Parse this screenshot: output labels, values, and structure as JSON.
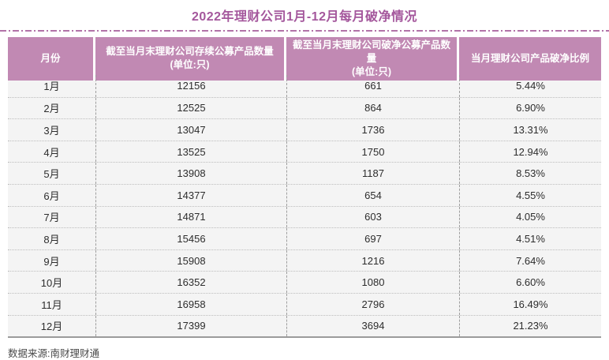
{
  "title": "2022年理财公司1月-12月每月破净情况",
  "source": "数据来源:南财理财通",
  "colors": {
    "title_text": "#a4579c",
    "header_bg": "#c189b3",
    "header_text": "#ffffff",
    "row_bg": "#f4f4f4",
    "body_text": "#2d2d2d",
    "divider_dash": "#b273a8",
    "bottom_rule": "#9b9b9b"
  },
  "table": {
    "headers": [
      {
        "label": "月份",
        "sub": ""
      },
      {
        "label": "截至当月末理财公司存续公募产品数量",
        "sub": "(单位:只)"
      },
      {
        "label": "截至当月末理财公司破净公募产品数量",
        "sub": "(单位:只)"
      },
      {
        "label": "当月理财公司产品破净比例",
        "sub": ""
      }
    ]
  },
  "chart_data": {
    "type": "table",
    "title": "2022年理财公司1月-12月每月破净情况",
    "columns": [
      "月份",
      "截至当月末理财公司存续公募产品数量(单位:只)",
      "截至当月末理财公司破净公募产品数量(单位:只)",
      "当月理财公司产品破净比例"
    ],
    "rows": [
      [
        "1月",
        12156,
        661,
        "5.44%"
      ],
      [
        "2月",
        12525,
        864,
        "6.90%"
      ],
      [
        "3月",
        13047,
        1736,
        "13.31%"
      ],
      [
        "4月",
        13525,
        1750,
        "12.94%"
      ],
      [
        "5月",
        13908,
        1187,
        "8.53%"
      ],
      [
        "6月",
        14377,
        654,
        "4.55%"
      ],
      [
        "7月",
        14871,
        603,
        "4.05%"
      ],
      [
        "8月",
        15456,
        697,
        "4.51%"
      ],
      [
        "9月",
        15908,
        1216,
        "7.64%"
      ],
      [
        "10月",
        16352,
        1080,
        "6.60%"
      ],
      [
        "11月",
        16958,
        2796,
        "16.49%"
      ],
      [
        "12月",
        17399,
        3694,
        "21.23%"
      ]
    ],
    "source": "南财理财通"
  }
}
